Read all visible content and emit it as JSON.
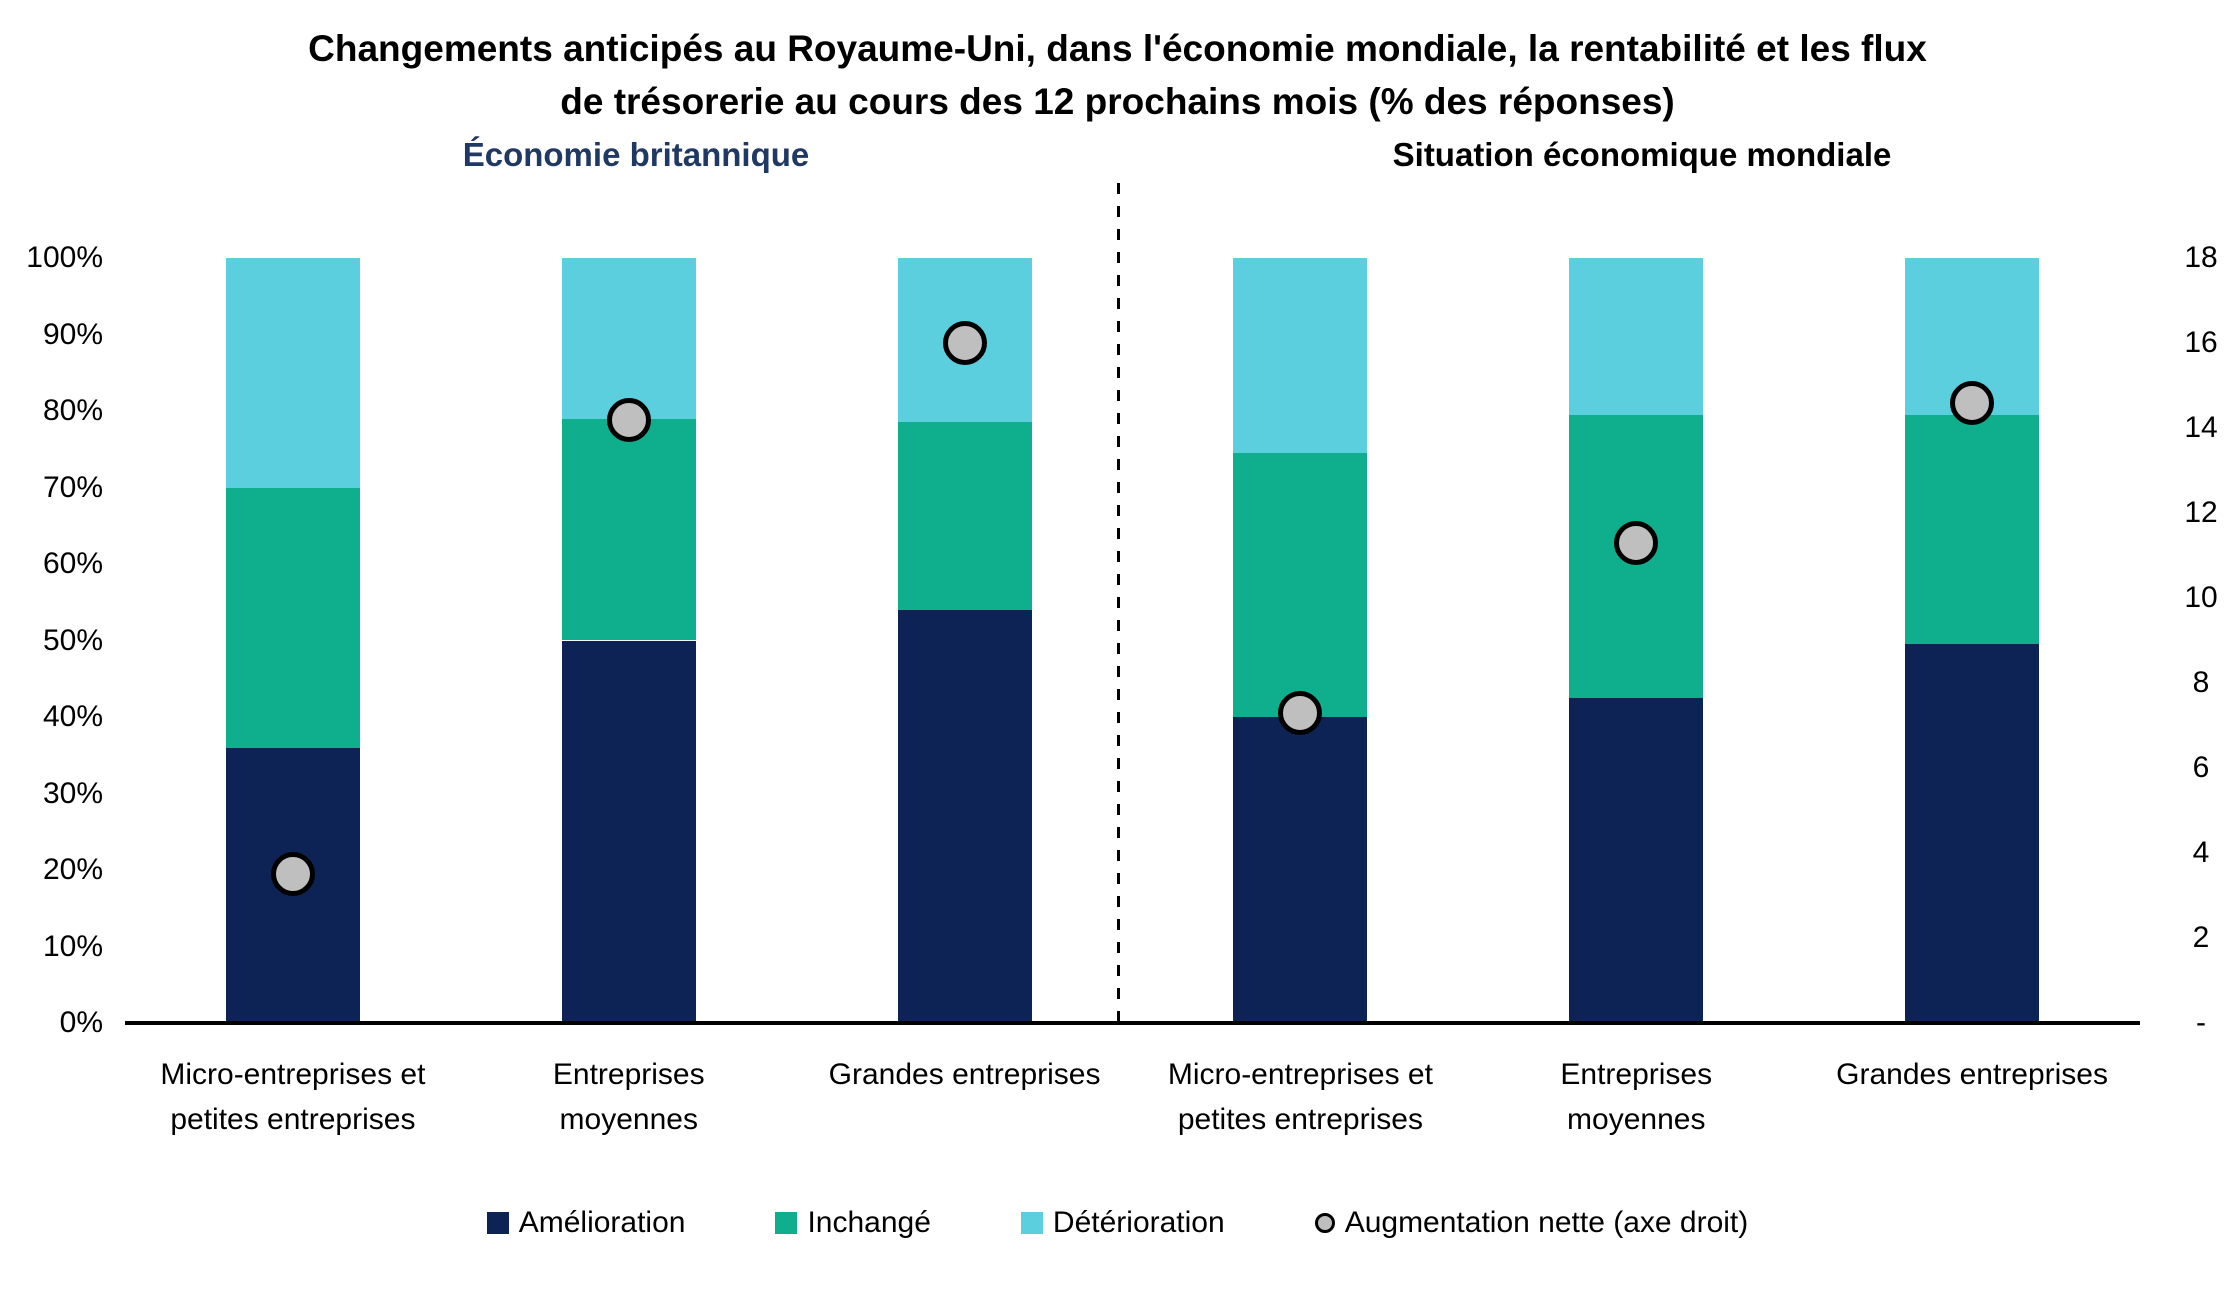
{
  "title": {
    "line1": "Changements anticipés au Royaume-Uni, dans l'économie mondiale, la rentabilité et les flux",
    "line2": "de trésorerie au cours des 12 prochains mois (% des réponses)"
  },
  "panel_titles": {
    "left": "Économie britannique",
    "right": "Situation économique mondiale"
  },
  "colors": {
    "amelioration": "#0d2356",
    "inchange": "#0fae8c",
    "deterioration": "#5bcfde",
    "net_fill": "#bfbfbf",
    "net_stroke": "#000000",
    "panel_title_left": "#1f3864",
    "panel_title_right": "#000000",
    "axis_line": "#000000"
  },
  "chart_data": {
    "type": "bar",
    "stacked": true,
    "grid": false,
    "legend_position": "bottom",
    "groups": [
      "Économie britannique",
      "Situation économique mondiale"
    ],
    "categories": [
      "Micro-entreprises et\npetites entreprises",
      "Entreprises\nmoyennes",
      "Grandes entreprises",
      "Micro-entreprises et\npetites entreprises",
      "Entreprises\nmoyennes",
      "Grandes entreprises"
    ],
    "series": [
      {
        "name": "Amélioration",
        "color": "#0d2356",
        "values": [
          36,
          50,
          54,
          40,
          42.5,
          49.5
        ]
      },
      {
        "name": "Inchangé",
        "color": "#0fae8c",
        "values": [
          34,
          29,
          24.5,
          34.5,
          37,
          30
        ]
      },
      {
        "name": "Détérioration",
        "color": "#5bcfde",
        "values": [
          30,
          21,
          21.5,
          25.5,
          20.5,
          20.5
        ]
      }
    ],
    "scatter_series": {
      "name": "Augmentation nette (axe droit)",
      "axis": "right",
      "fill": "#bfbfbf",
      "stroke": "#000000",
      "values": [
        3.5,
        14.2,
        16,
        7.3,
        11.3,
        14.6
      ]
    },
    "left_axis": {
      "min": 0,
      "max": 100,
      "tick_step": 10,
      "tick_labels": [
        "0%",
        "10%",
        "20%",
        "30%",
        "40%",
        "50%",
        "60%",
        "70%",
        "80%",
        "90%",
        "100%"
      ]
    },
    "right_axis": {
      "min": 0,
      "max": 18,
      "tick_step": 2,
      "tick_labels": [
        "-",
        "2",
        "4",
        "6",
        "8",
        "10",
        "12",
        "14",
        "16",
        "18"
      ]
    }
  }
}
